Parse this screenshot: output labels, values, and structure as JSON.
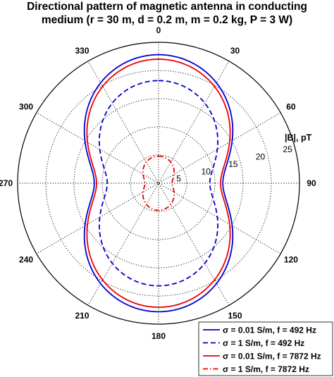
{
  "title_line1": "Directional pattern of magnetic antenna in conducting",
  "title_line2": "medium (r = 30 m, d = 0.2 m, m = 0.2 kg, P = 3 W)",
  "chart_data": {
    "type": "polar-line",
    "title": "Directional pattern of magnetic antenna in conducting medium (r = 30 m, d = 0.2 m, m = 0.2 kg, P = 3 W)",
    "radial_unit_label": "|B|, pT",
    "rlim": [
      0,
      25
    ],
    "radial_ticks": [
      "5",
      "10",
      "15",
      "20",
      "25"
    ],
    "angle_ticks": [
      "0",
      "30",
      "60",
      "90",
      "120",
      "150",
      "180",
      "210",
      "240",
      "270",
      "300",
      "330"
    ],
    "angle_zero": "top",
    "angle_direction": "clockwise",
    "grid": true,
    "legend_position": "bottom-right",
    "pattern_shape": "sqrt(cos^2(theta) + 0.25 sin^2(theta))",
    "series": [
      {
        "name": "σ = 0.01 S/m, f = 492 Hz",
        "color": "#0000cc",
        "style": "solid",
        "B_axial": 22.8
      },
      {
        "name": "σ = 1 S/m, f = 492 Hz",
        "color": "#0000cc",
        "style": "dashed",
        "B_axial": 18.2
      },
      {
        "name": "σ = 0.01 S/m, f = 7872 Hz",
        "color": "#ee0000",
        "style": "solid",
        "B_axial": 22.0
      },
      {
        "name": "σ = 1 S/m, f = 7872 Hz",
        "color": "#ee0000",
        "style": "dashdot",
        "B_axial": 4.8
      }
    ]
  }
}
